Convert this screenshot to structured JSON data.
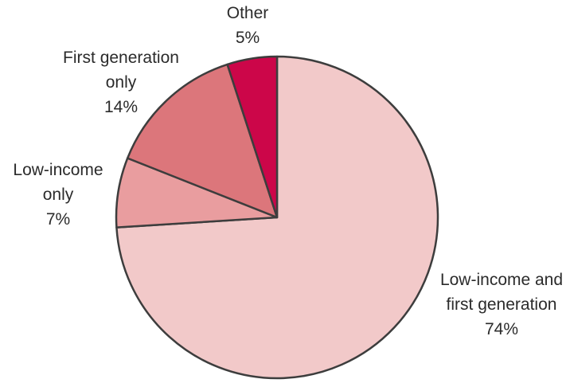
{
  "chart_data": {
    "type": "pie",
    "title": "",
    "start_angle_deg": 0,
    "direction": "clockwise",
    "slices": [
      {
        "label": "Low-income and first generation",
        "label_lines": [
          "Low-income and",
          "first generation",
          "74%"
        ],
        "value": 74,
        "color": "#f2c9c9",
        "label_placement": "right"
      },
      {
        "label": "Low-income only",
        "label_lines": [
          "Low-income",
          "only",
          "7%"
        ],
        "value": 7,
        "color": "#e99d9f",
        "label_placement": "left"
      },
      {
        "label": "First generation only",
        "label_lines": [
          "First generation",
          "only",
          "14%"
        ],
        "value": 14,
        "color": "#dc767b",
        "label_placement": "top-left"
      },
      {
        "label": "Other",
        "label_lines": [
          "Other",
          "5%"
        ],
        "value": 5,
        "color": "#cc0649",
        "label_placement": "top"
      }
    ]
  }
}
